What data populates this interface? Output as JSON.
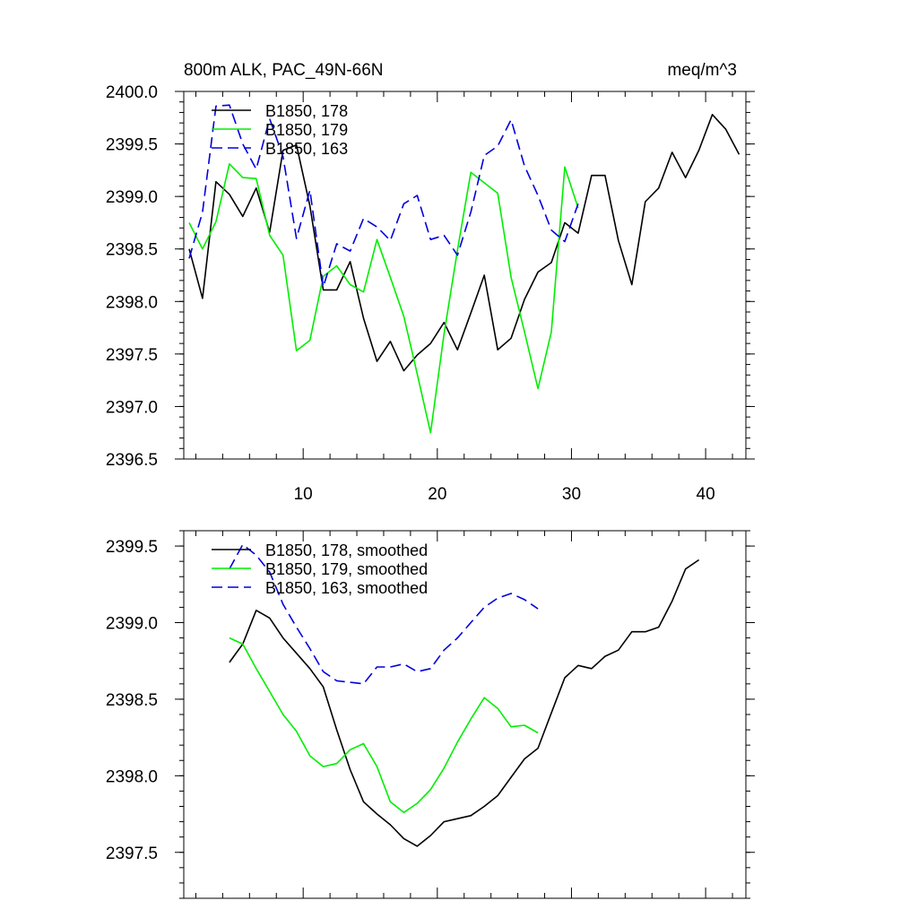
{
  "chart_data": [
    {
      "type": "line",
      "title_left": "800m ALK, PAC_49N-66N",
      "title_right": "meq/m^3",
      "xlabel": "",
      "ylabel": "",
      "xlim": [
        1.1,
        43.0
      ],
      "ylim": [
        2396.5,
        2400.0
      ],
      "x_ticks": [
        10,
        20,
        30,
        40
      ],
      "y_ticks": [
        2396.5,
        2397.0,
        2397.5,
        2398.0,
        2398.5,
        2399.0,
        2399.5,
        2400.0
      ],
      "y_tick_labels": [
        "2396.5",
        "2397.0",
        "2397.5",
        "2398.0",
        "2398.5",
        "2399.0",
        "2399.5",
        "2400.0"
      ],
      "x_tick_labels": [
        "10",
        "20",
        "30",
        "40"
      ],
      "legend_position": "top-left",
      "series": [
        {
          "name": "B1850, 178",
          "color": "#000000",
          "dash": "solid",
          "x": [
            1.5,
            2.5,
            3.5,
            4.5,
            5.5,
            6.5,
            7.5,
            8.5,
            9.5,
            10.5,
            11.5,
            12.5,
            13.5,
            14.5,
            15.5,
            16.5,
            17.5,
            18.5,
            19.5,
            20.5,
            21.5,
            22.5,
            23.5,
            24.5,
            25.5,
            26.5,
            27.5,
            28.5,
            29.5,
            30.5,
            31.5,
            32.5,
            33.5,
            34.5,
            35.5,
            36.5,
            37.5,
            38.5,
            39.5,
            40.5,
            41.5,
            42.5
          ],
          "values": [
            2398.5,
            2398.03,
            2399.14,
            2399.02,
            2398.81,
            2399.08,
            2398.66,
            2399.44,
            2399.49,
            2398.91,
            2398.11,
            2398.11,
            2398.38,
            2397.84,
            2397.43,
            2397.62,
            2397.34,
            2397.49,
            2397.6,
            2397.8,
            2397.54,
            2397.89,
            2398.25,
            2397.54,
            2397.65,
            2398.02,
            2398.28,
            2398.37,
            2398.75,
            2398.65,
            2399.2,
            2399.2,
            2398.58,
            2398.16,
            2398.95,
            2399.08,
            2399.42,
            2399.18,
            2399.44,
            2399.78,
            2399.64,
            2399.4
          ]
        },
        {
          "name": "B1850, 179",
          "color": "#00ee00",
          "dash": "solid",
          "x": [
            1.5,
            2.5,
            3.5,
            4.5,
            5.5,
            6.5,
            7.5,
            8.5,
            9.5,
            10.5,
            11.5,
            12.5,
            13.5,
            14.5,
            15.5,
            16.5,
            17.5,
            18.5,
            19.5,
            20.5,
            21.5,
            22.5,
            23.5,
            24.5,
            25.5,
            26.5,
            27.5,
            28.5,
            29.5,
            30.5
          ],
          "values": [
            2398.75,
            2398.5,
            2398.76,
            2399.31,
            2399.18,
            2399.17,
            2398.63,
            2398.44,
            2397.53,
            2397.63,
            2398.24,
            2398.34,
            2398.16,
            2398.09,
            2398.59,
            2398.23,
            2397.86,
            2397.31,
            2396.75,
            2397.69,
            2398.49,
            2399.23,
            2399.13,
            2399.03,
            2398.23,
            2397.71,
            2397.17,
            2397.71,
            2399.28,
            2398.89
          ]
        },
        {
          "name": "B1850, 163",
          "color": "#0000dd",
          "dash": "dashed",
          "x": [
            1.5,
            2.5,
            3.5,
            4.5,
            5.5,
            6.5,
            7.5,
            8.5,
            9.5,
            10.5,
            11.5,
            12.5,
            13.5,
            14.5,
            15.5,
            16.5,
            17.5,
            18.5,
            19.5,
            20.5,
            21.5,
            22.5,
            23.5,
            24.5,
            25.5,
            26.5,
            27.5,
            28.5,
            29.5,
            30.5
          ],
          "values": [
            2398.41,
            2398.85,
            2399.86,
            2399.87,
            2399.5,
            2399.26,
            2399.74,
            2399.38,
            2398.6,
            2399.06,
            2398.14,
            2398.55,
            2398.48,
            2398.79,
            2398.71,
            2398.58,
            2398.93,
            2399.01,
            2398.59,
            2398.63,
            2398.44,
            2398.85,
            2399.39,
            2399.48,
            2399.73,
            2399.29,
            2399.01,
            2398.68,
            2398.57,
            2398.93
          ]
        }
      ]
    },
    {
      "type": "line",
      "title_left": "",
      "title_right": "",
      "xlabel": "",
      "ylabel": "",
      "xlim": [
        1.1,
        43.0
      ],
      "ylim": [
        2397.2,
        2399.6
      ],
      "x_ticks": [
        10,
        20,
        30,
        40
      ],
      "y_ticks": [
        2397.5,
        2398.0,
        2398.5,
        2399.0,
        2399.5
      ],
      "y_tick_labels": [
        "2397.5",
        "2398.0",
        "2398.5",
        "2399.0",
        "2399.5"
      ],
      "x_tick_labels": [],
      "legend_position": "top-left",
      "series": [
        {
          "name": "B1850, 178, smoothed",
          "color": "#000000",
          "dash": "solid",
          "x": [
            4.5,
            5.5,
            6.5,
            7.5,
            8.5,
            9.5,
            10.5,
            11.5,
            12.5,
            13.5,
            14.5,
            15.5,
            16.5,
            17.5,
            18.5,
            19.5,
            20.5,
            21.5,
            22.5,
            23.5,
            24.5,
            25.5,
            26.5,
            27.5,
            28.5,
            29.5,
            30.5,
            31.5,
            32.5,
            33.5,
            34.5,
            35.5,
            36.5,
            37.5,
            38.5,
            39.5
          ],
          "values": [
            2398.74,
            2398.86,
            2399.08,
            2399.03,
            2398.9,
            2398.8,
            2398.7,
            2398.58,
            2398.3,
            2398.04,
            2397.83,
            2397.75,
            2397.68,
            2397.59,
            2397.54,
            2397.61,
            2397.7,
            2397.72,
            2397.74,
            2397.8,
            2397.87,
            2397.99,
            2398.11,
            2398.18,
            2398.41,
            2398.64,
            2398.72,
            2398.7,
            2398.78,
            2398.82,
            2398.94,
            2398.94,
            2398.97,
            2399.14,
            2399.35,
            2399.41
          ]
        },
        {
          "name": "B1850, 179, smoothed",
          "color": "#00ee00",
          "dash": "solid",
          "x": [
            4.5,
            5.5,
            6.5,
            7.5,
            8.5,
            9.5,
            10.5,
            11.5,
            12.5,
            13.5,
            14.5,
            15.5,
            16.5,
            17.5,
            18.5,
            19.5,
            20.5,
            21.5,
            22.5,
            23.5,
            24.5,
            25.5,
            26.5,
            27.5
          ],
          "values": [
            2398.9,
            2398.86,
            2398.7,
            2398.55,
            2398.4,
            2398.29,
            2398.13,
            2398.06,
            2398.08,
            2398.17,
            2398.21,
            2398.06,
            2397.83,
            2397.76,
            2397.82,
            2397.91,
            2398.05,
            2398.22,
            2398.37,
            2398.51,
            2398.44,
            2398.32,
            2398.33,
            2398.28
          ]
        },
        {
          "name": "B1850, 163, smoothed",
          "color": "#0000dd",
          "dash": "dashed",
          "x": [
            4.5,
            5.5,
            6.5,
            7.5,
            8.5,
            9.5,
            10.5,
            11.5,
            12.5,
            13.5,
            14.5,
            15.5,
            16.5,
            17.5,
            18.5,
            19.5,
            20.5,
            21.5,
            22.5,
            23.5,
            24.5,
            25.5,
            26.5,
            27.5
          ],
          "values": [
            2399.35,
            2399.51,
            2399.44,
            2399.33,
            2399.12,
            2398.97,
            2398.83,
            2398.68,
            2398.62,
            2398.61,
            2398.6,
            2398.71,
            2398.71,
            2398.73,
            2398.68,
            2398.7,
            2398.82,
            2398.9,
            2399.0,
            2399.1,
            2399.16,
            2399.19,
            2399.15,
            2399.09
          ]
        }
      ]
    }
  ]
}
